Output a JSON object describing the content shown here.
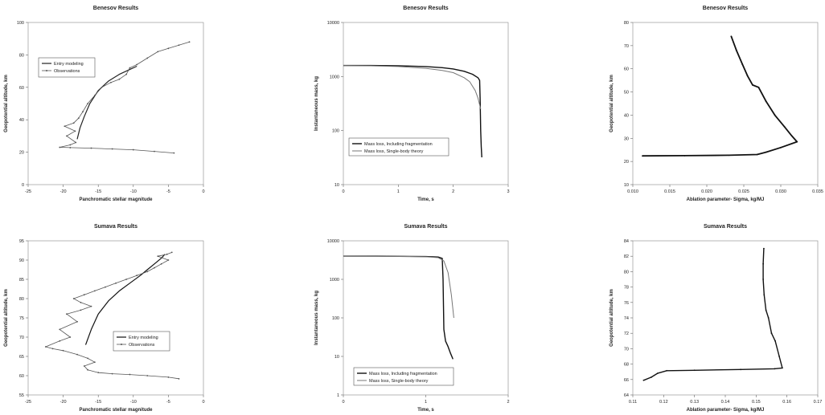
{
  "chart_data": [
    {
      "type": "line",
      "title": "Benesov Results",
      "xlabel": "Panchromatic stellar magnitude",
      "ylabel": "Geopotential altitude, km",
      "xlim": [
        -25,
        0
      ],
      "ylim": [
        0,
        100
      ],
      "xticks": [
        -25,
        -20,
        -15,
        -10,
        -5,
        0
      ],
      "yticks": [
        0,
        20,
        40,
        60,
        80,
        100
      ],
      "xtick_labels": [
        "-25",
        "-20",
        "-15",
        "-10",
        "-5",
        "0"
      ],
      "ytick_labels": [
        "0",
        "20",
        "40",
        "60",
        "80",
        "100"
      ],
      "legend_position": "upper-left",
      "series": [
        {
          "name": "Entry modeling",
          "color": "#222222",
          "marker": "none",
          "width": 1.2,
          "x": [
            -18.0,
            -17.6,
            -17.0,
            -16.2,
            -15.0,
            -13.5,
            -12.0,
            -10.5,
            -9.5
          ],
          "y": [
            28,
            35,
            42,
            50,
            58,
            64,
            68,
            71,
            73
          ]
        },
        {
          "name": "Observations",
          "color": "#555555",
          "marker": "dot",
          "width": 0.8,
          "x": [
            -4.2,
            -7.0,
            -10.0,
            -13.0,
            -16.0,
            -19.0,
            -20.5,
            -19.0,
            -18.2,
            -19.5,
            -18.3,
            -19.8,
            -18.5,
            -17.8,
            -17.2,
            -16.5,
            -15.5,
            -14.5,
            -13.2,
            -12.0,
            -11.0,
            -10.5,
            -9.5,
            -8.0,
            -6.5,
            -5.0,
            -3.5,
            -2.0
          ],
          "y": [
            19.5,
            20.5,
            21.5,
            22.0,
            22.5,
            22.8,
            23.0,
            24.5,
            26.0,
            30.0,
            33.0,
            36.0,
            38.0,
            41.0,
            45.0,
            50.0,
            55.0,
            60.0,
            63.0,
            65.0,
            68.0,
            72.0,
            74.0,
            78.0,
            82.0,
            84.0,
            86.0,
            88.0
          ]
        }
      ]
    },
    {
      "type": "line",
      "title": "Benesov Results",
      "xlabel": "Time, s",
      "ylabel": "Instantaneous mass, kg",
      "xlim": [
        0,
        3
      ],
      "ylim": [
        10,
        10000
      ],
      "yscale": "log",
      "xticks": [
        0,
        1,
        2,
        3
      ],
      "yticks": [
        10,
        100,
        1000,
        10000
      ],
      "xtick_labels": [
        "0",
        "1",
        "2",
        "3"
      ],
      "ytick_labels": [
        "10",
        "100",
        "1000",
        "10000"
      ],
      "legend_position": "lower-left",
      "series": [
        {
          "name": "Mass loss, Including fragmentation",
          "color": "#111111",
          "marker": "none",
          "width": 1.4,
          "x": [
            0,
            0.5,
            1.0,
            1.5,
            1.8,
            2.0,
            2.2,
            2.35,
            2.45,
            2.48,
            2.49,
            2.5,
            2.51,
            2.52
          ],
          "y": [
            1600,
            1600,
            1580,
            1530,
            1460,
            1380,
            1250,
            1100,
            950,
            850,
            400,
            100,
            50,
            32
          ]
        },
        {
          "name": "Mass loss, Single-body theory",
          "color": "#777777",
          "marker": "none",
          "width": 1.0,
          "x": [
            0,
            0.5,
            1.0,
            1.5,
            1.8,
            2.0,
            2.2,
            2.3,
            2.4,
            2.45,
            2.5
          ],
          "y": [
            1600,
            1580,
            1530,
            1420,
            1300,
            1180,
            950,
            800,
            550,
            400,
            250
          ]
        }
      ]
    },
    {
      "type": "line",
      "title": "Benesov Results",
      "xlabel": "Ablation parameter- Sigma, kg/MJ",
      "ylabel": "Geopotential altitude, km",
      "xlim": [
        0.01,
        0.035
      ],
      "ylim": [
        10,
        80
      ],
      "xticks": [
        0.01,
        0.015,
        0.02,
        0.025,
        0.03,
        0.035
      ],
      "yticks": [
        10,
        20,
        30,
        40,
        50,
        60,
        70,
        80
      ],
      "xtick_labels": [
        "0.010",
        "0.015",
        "0.020",
        "0.025",
        "0.030",
        "0.035"
      ],
      "ytick_labels": [
        "10",
        "20",
        "30",
        "40",
        "50",
        "60",
        "70",
        "80"
      ],
      "legend_position": "none",
      "series": [
        {
          "color": "#111111",
          "marker": "dot",
          "width": 1.8,
          "x": [
            0.0233,
            0.024,
            0.0248,
            0.0255,
            0.0262,
            0.027,
            0.028,
            0.0292,
            0.0305,
            0.0315,
            0.0322,
            0.03,
            0.028,
            0.0268,
            0.023,
            0.017,
            0.0113
          ],
          "y": [
            74,
            68,
            62,
            57,
            53,
            52,
            46,
            40,
            35,
            31,
            28.5,
            26.0,
            24.0,
            23.0,
            22.7,
            22.5,
            22.4
          ]
        }
      ]
    },
    {
      "type": "line",
      "title": "Sumava Results",
      "xlabel": "Panchromatic stellar magnitude",
      "ylabel": "Geopotential altitude, km",
      "xlim": [
        -25,
        0
      ],
      "ylim": [
        55,
        95
      ],
      "xticks": [
        -25,
        -20,
        -15,
        -10,
        -5,
        0
      ],
      "yticks": [
        55,
        60,
        65,
        70,
        75,
        80,
        85,
        90,
        95
      ],
      "xtick_labels": [
        "-25",
        "-20",
        "-15",
        "-10",
        "-5",
        "0"
      ],
      "ytick_labels": [
        "55",
        "60",
        "65",
        "70",
        "75",
        "80",
        "85",
        "90",
        "95"
      ],
      "legend_position": "lower-right",
      "series": [
        {
          "name": "Entry modeling",
          "color": "#111111",
          "marker": "none",
          "width": 1.2,
          "x": [
            -16.8,
            -16.0,
            -15.0,
            -13.5,
            -12.0,
            -10.5,
            -9.0,
            -8.0,
            -7.0,
            -6.0,
            -5.5
          ],
          "y": [
            68,
            72,
            76,
            79.5,
            82,
            84,
            86,
            87.5,
            89,
            90.5,
            91.5
          ]
        },
        {
          "name": "Observations",
          "color": "#555555",
          "marker": "dot",
          "width": 0.8,
          "x": [
            -3.5,
            -5.0,
            -8.0,
            -10.5,
            -13.0,
            -15.0,
            -16.5,
            -17.0,
            -15.5,
            -16.5,
            -18.0,
            -20.0,
            -21.5,
            -22.5,
            -20.5,
            -19.0,
            -20.5,
            -18.0,
            -19.5,
            -17.5,
            -16.0,
            -17.5,
            -18.5,
            -17.0,
            -15.5,
            -14.0,
            -12.5,
            -11.0,
            -9.5,
            -8.0,
            -7.0,
            -6.0,
            -5.0,
            -6.5,
            -5.2,
            -4.5
          ],
          "y": [
            59.2,
            59.6,
            60.0,
            60.3,
            60.5,
            60.8,
            61.5,
            62.5,
            63.5,
            64.5,
            65.5,
            66.5,
            67.0,
            67.5,
            69.0,
            70.0,
            72.0,
            74.0,
            76.0,
            77.0,
            78.0,
            79.0,
            80.0,
            81.0,
            82.0,
            83.0,
            84.0,
            85.0,
            86.0,
            87.0,
            88.0,
            89.0,
            90.0,
            91.0,
            91.5,
            92.0
          ]
        }
      ]
    },
    {
      "type": "line",
      "title": "Sumava Results",
      "xlabel": "Time, s",
      "ylabel": "Instantaneous mass, kg",
      "xlim": [
        0,
        2
      ],
      "ylim": [
        1,
        10000
      ],
      "yscale": "log",
      "xticks": [
        0,
        1,
        2
      ],
      "yticks": [
        1,
        10,
        100,
        1000,
        10000
      ],
      "xtick_labels": [
        "0",
        "1",
        "2"
      ],
      "ytick_labels": [
        "1",
        "10",
        "100",
        "1000",
        "10000"
      ],
      "legend_position": "lower-left",
      "series": [
        {
          "name": "Mass loss, Including fragmentation",
          "color": "#111111",
          "marker": "none",
          "width": 1.4,
          "x": [
            0,
            0.4,
            0.8,
            1.0,
            1.15,
            1.2,
            1.21,
            1.22,
            1.24,
            1.27,
            1.3,
            1.33
          ],
          "y": [
            4000,
            4000,
            3950,
            3900,
            3800,
            3500,
            1000,
            50,
            25,
            18,
            12,
            8.5
          ]
        },
        {
          "name": "Mass loss, Single-body theory",
          "color": "#777777",
          "marker": "none",
          "width": 1.0,
          "x": [
            0,
            0.4,
            0.8,
            1.0,
            1.15,
            1.22,
            1.27,
            1.31,
            1.34
          ],
          "y": [
            4000,
            3980,
            3920,
            3850,
            3650,
            3000,
            1500,
            400,
            100
          ]
        }
      ]
    },
    {
      "type": "line",
      "title": "Sumava Results",
      "xlabel": "Ablation parameter- Sigma, kg/MJ",
      "ylabel": "Geopotential altitude, km",
      "xlim": [
        0.11,
        0.17
      ],
      "ylim": [
        64,
        84
      ],
      "xticks": [
        0.11,
        0.12,
        0.13,
        0.14,
        0.15,
        0.16,
        0.17
      ],
      "yticks": [
        64,
        66,
        68,
        70,
        72,
        74,
        76,
        78,
        80,
        82,
        84
      ],
      "xtick_labels": [
        "0.11",
        "0.12",
        "0.13",
        "0.14",
        "0.15",
        "0.16",
        "0.17"
      ],
      "ytick_labels": [
        "64",
        "66",
        "68",
        "70",
        "72",
        "74",
        "76",
        "78",
        "80",
        "82",
        "84"
      ],
      "legend_position": "none",
      "series": [
        {
          "color": "#111111",
          "marker": "dot",
          "width": 1.4,
          "x": [
            0.1525,
            0.1523,
            0.1523,
            0.1526,
            0.1532,
            0.154,
            0.155,
            0.1562,
            0.1575,
            0.1585,
            0.156,
            0.145,
            0.13,
            0.121,
            0.118,
            0.116,
            0.1135
          ],
          "y": [
            83,
            81,
            79,
            77,
            75,
            74,
            72,
            71,
            69,
            67.5,
            67.4,
            67.3,
            67.2,
            67.15,
            66.8,
            66.3,
            65.9
          ]
        }
      ]
    }
  ]
}
